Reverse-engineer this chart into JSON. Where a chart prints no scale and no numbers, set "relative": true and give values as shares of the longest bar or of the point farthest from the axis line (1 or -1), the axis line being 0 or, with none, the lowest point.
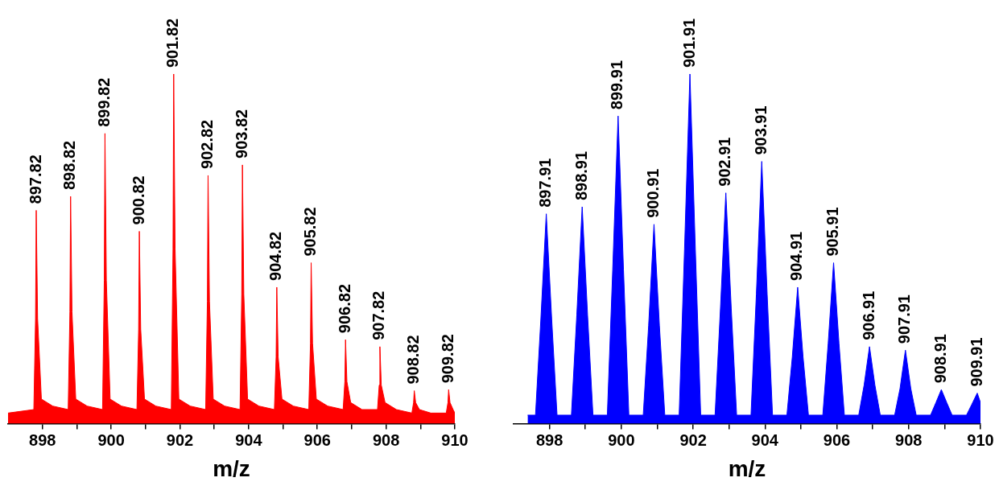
{
  "chart_data": [
    {
      "type": "area",
      "relative": true,
      "xlabel": "m/z",
      "xlim": [
        897,
        910
      ],
      "xticks": [
        898,
        {
          "value": 899,
          "label": null
        },
        900,
        {
          "value": 901,
          "label": null
        },
        902,
        {
          "value": 903,
          "label": null
        },
        904,
        {
          "value": 905,
          "label": null
        },
        906,
        {
          "value": 907,
          "label": null
        },
        908,
        {
          "value": 909,
          "label": null
        },
        910
      ],
      "tick_labels": "x",
      "grid": false,
      "series": [
        {
          "color": "#ff0000",
          "x": [
            897.0,
            897.75,
            897.8,
            897.82,
            897.86,
            897.97,
            898.3,
            898.75,
            898.8,
            898.82,
            898.86,
            898.97,
            899.3,
            899.75,
            899.8,
            899.82,
            899.86,
            899.97,
            900.3,
            900.75,
            900.8,
            900.82,
            900.86,
            900.97,
            901.3,
            901.75,
            901.8,
            901.82,
            901.86,
            901.97,
            902.3,
            902.75,
            902.8,
            902.82,
            902.86,
            902.97,
            903.3,
            903.75,
            903.8,
            903.82,
            903.86,
            903.97,
            904.3,
            904.75,
            904.8,
            904.82,
            904.86,
            904.97,
            905.3,
            905.75,
            905.8,
            905.82,
            905.86,
            905.97,
            906.3,
            906.75,
            906.8,
            906.82,
            906.86,
            906.97,
            907.3,
            907.75,
            907.8,
            907.82,
            907.86,
            907.97,
            908.3,
            908.75,
            908.8,
            908.82,
            908.86,
            908.97,
            909.3,
            909.75,
            909.8,
            909.82,
            909.86,
            909.95,
            910.0
          ],
          "values": [
            0.03,
            0.04,
            0.3,
            0.61,
            0.3,
            0.07,
            0.05,
            0.04,
            0.32,
            0.65,
            0.32,
            0.07,
            0.05,
            0.04,
            0.41,
            0.83,
            0.41,
            0.07,
            0.05,
            0.04,
            0.27,
            0.55,
            0.27,
            0.07,
            0.05,
            0.04,
            0.5,
            1,
            0.5,
            0.07,
            0.05,
            0.04,
            0.35,
            0.71,
            0.35,
            0.07,
            0.05,
            0.04,
            0.37,
            0.74,
            0.37,
            0.07,
            0.05,
            0.04,
            0.19,
            0.39,
            0.19,
            0.07,
            0.05,
            0.04,
            0.23,
            0.46,
            0.23,
            0.07,
            0.05,
            0.04,
            0.12,
            0.24,
            0.12,
            0.06,
            0.04,
            0.04,
            0.11,
            0.22,
            0.11,
            0.06,
            0.04,
            0.03,
            0.06,
            0.094,
            0.06,
            0.04,
            0.03,
            0.03,
            0.06,
            0.097,
            0.06,
            0.04,
            0.03
          ]
        }
      ],
      "annotations": [
        {
          "text": "897.82",
          "x": 897.82,
          "y": 0.61
        },
        {
          "text": "898.82",
          "x": 898.82,
          "y": 0.65
        },
        {
          "text": "899.82",
          "x": 899.82,
          "y": 0.83
        },
        {
          "text": "900.82",
          "x": 900.82,
          "y": 0.55
        },
        {
          "text": "901.82",
          "x": 901.82,
          "y": 1
        },
        {
          "text": "902.82",
          "x": 902.82,
          "y": 0.71
        },
        {
          "text": "903.82",
          "x": 903.82,
          "y": 0.74
        },
        {
          "text": "904.82",
          "x": 904.82,
          "y": 0.39
        },
        {
          "text": "905.82",
          "x": 905.82,
          "y": 0.46
        },
        {
          "text": "906.82",
          "x": 906.82,
          "y": 0.24
        },
        {
          "text": "907.82",
          "x": 907.82,
          "y": 0.22
        },
        {
          "text": "908.82",
          "x": 908.82,
          "y": 0.094
        },
        {
          "text": "909.82",
          "x": 909.82,
          "y": 0.097
        }
      ]
    },
    {
      "type": "area",
      "relative": true,
      "xlabel": "m/z",
      "xlim": [
        897,
        910
      ],
      "xticks": [
        898,
        {
          "value": 899,
          "label": null
        },
        900,
        {
          "value": 901,
          "label": null
        },
        902,
        {
          "value": 903,
          "label": null
        },
        904,
        {
          "value": 905,
          "label": null
        },
        906,
        {
          "value": 907,
          "label": null
        },
        908,
        {
          "value": 909,
          "label": null
        },
        910
      ],
      "tick_labels": "x",
      "grid": false,
      "series": [
        {
          "color": "#0000ff",
          "x": [
            897.39,
            897.61,
            897.76,
            897.91,
            898.06,
            898.21,
            898.61,
            898.76,
            898.91,
            899.06,
            899.21,
            899.61,
            899.76,
            899.91,
            900.06,
            900.21,
            900.61,
            900.76,
            900.91,
            901.06,
            901.21,
            901.61,
            901.76,
            901.91,
            902.06,
            902.21,
            902.61,
            902.76,
            902.91,
            903.06,
            903.21,
            903.61,
            903.76,
            903.91,
            904.06,
            904.21,
            904.61,
            904.76,
            904.91,
            905.06,
            905.21,
            905.61,
            905.76,
            905.91,
            906.06,
            906.21,
            906.61,
            906.76,
            906.91,
            907.06,
            907.21,
            907.61,
            907.76,
            907.91,
            908.06,
            908.21,
            908.61,
            908.76,
            908.91,
            909.06,
            909.21,
            909.61,
            909.76,
            909.91,
            910.0
          ],
          "values": [
            0.024,
            0.024,
            0.3,
            0.6,
            0.3,
            0.024,
            0.024,
            0.31,
            0.62,
            0.31,
            0.024,
            0.024,
            0.44,
            0.88,
            0.44,
            0.024,
            0.024,
            0.28,
            0.57,
            0.28,
            0.024,
            0.024,
            0.5,
            1,
            0.5,
            0.024,
            0.024,
            0.33,
            0.66,
            0.33,
            0.024,
            0.024,
            0.37,
            0.75,
            0.37,
            0.024,
            0.024,
            0.19,
            0.39,
            0.19,
            0.024,
            0.024,
            0.23,
            0.46,
            0.23,
            0.024,
            0.024,
            0.11,
            0.22,
            0.11,
            0.024,
            0.024,
            0.1,
            0.21,
            0.1,
            0.024,
            0.024,
            0.06,
            0.097,
            0.06,
            0.024,
            0.024,
            0.055,
            0.087,
            0.06
          ]
        }
      ],
      "annotations": [
        {
          "text": "897.91",
          "x": 897.91,
          "y": 0.6
        },
        {
          "text": "898.91",
          "x": 898.91,
          "y": 0.62
        },
        {
          "text": "899.91",
          "x": 899.91,
          "y": 0.88
        },
        {
          "text": "900.91",
          "x": 900.91,
          "y": 0.57
        },
        {
          "text": "901.91",
          "x": 901.91,
          "y": 1
        },
        {
          "text": "902.91",
          "x": 902.91,
          "y": 0.66
        },
        {
          "text": "903.91",
          "x": 903.91,
          "y": 0.75
        },
        {
          "text": "904.91",
          "x": 904.91,
          "y": 0.39
        },
        {
          "text": "905.91",
          "x": 905.91,
          "y": 0.46
        },
        {
          "text": "906.91",
          "x": 906.91,
          "y": 0.22
        },
        {
          "text": "907.91",
          "x": 907.91,
          "y": 0.21
        },
        {
          "text": "908.91",
          "x": 908.91,
          "y": 0.097
        },
        {
          "text": "909.91",
          "x": 909.91,
          "y": 0.087
        }
      ]
    }
  ]
}
